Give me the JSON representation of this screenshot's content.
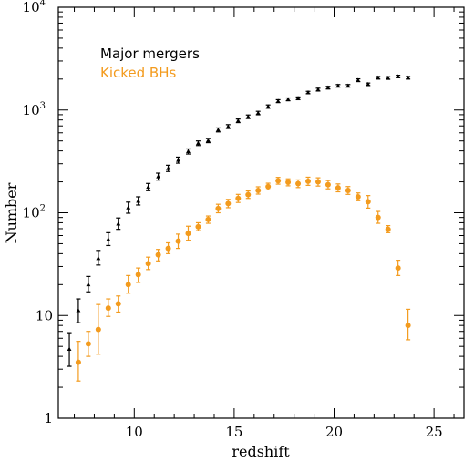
{
  "chart_data": {
    "type": "scatter",
    "xlabel": "redshift",
    "ylabel": "Number",
    "xlim": [
      6.2,
      26.5
    ],
    "ylim": [
      1,
      10000
    ],
    "yscale": "log",
    "xticks_major": [
      10,
      15,
      20,
      25
    ],
    "xtick_labels": [
      "10",
      "15",
      "20",
      "25"
    ],
    "ytick_labels": [
      {
        "value": 1,
        "label": "1"
      },
      {
        "value": 10,
        "label": "10"
      },
      {
        "value": 100,
        "label": "10",
        "exp": "2"
      },
      {
        "value": 1000,
        "label": "10",
        "exp": "3"
      },
      {
        "value": 10000,
        "label": "10",
        "exp": "4"
      }
    ],
    "legend_position": "top-left",
    "series": [
      {
        "name": "Major mergers",
        "color": "#000000",
        "marker": "triangle",
        "points": [
          {
            "x": 6.75,
            "y": 4.7,
            "lo": 3.2,
            "hi": 6.8
          },
          {
            "x": 7.2,
            "y": 11.2,
            "lo": 8.5,
            "hi": 14.5
          },
          {
            "x": 7.7,
            "y": 20,
            "lo": 17,
            "hi": 24
          },
          {
            "x": 8.2,
            "y": 36,
            "lo": 31,
            "hi": 43
          },
          {
            "x": 8.7,
            "y": 55,
            "lo": 48,
            "hi": 64
          },
          {
            "x": 9.2,
            "y": 78,
            "lo": 69,
            "hi": 89
          },
          {
            "x": 9.7,
            "y": 112,
            "lo": 99,
            "hi": 127
          },
          {
            "x": 10.2,
            "y": 130,
            "lo": 119,
            "hi": 143
          },
          {
            "x": 10.7,
            "y": 178,
            "lo": 164,
            "hi": 193
          },
          {
            "x": 11.2,
            "y": 225,
            "lo": 208,
            "hi": 243
          },
          {
            "x": 11.7,
            "y": 270,
            "lo": 252,
            "hi": 290
          },
          {
            "x": 12.2,
            "y": 325,
            "lo": 304,
            "hi": 348
          },
          {
            "x": 12.7,
            "y": 395,
            "lo": 373,
            "hi": 418
          },
          {
            "x": 13.2,
            "y": 475,
            "lo": 451,
            "hi": 500
          },
          {
            "x": 13.7,
            "y": 505,
            "lo": 481,
            "hi": 530
          },
          {
            "x": 14.2,
            "y": 640,
            "lo": 612,
            "hi": 669
          },
          {
            "x": 14.7,
            "y": 690,
            "lo": 661,
            "hi": 720
          },
          {
            "x": 15.2,
            "y": 785,
            "lo": 754,
            "hi": 817
          },
          {
            "x": 15.7,
            "y": 860,
            "lo": 826,
            "hi": 894
          },
          {
            "x": 16.2,
            "y": 935,
            "lo": 899,
            "hi": 971
          },
          {
            "x": 16.7,
            "y": 1080,
            "lo": 1040,
            "hi": 1120
          },
          {
            "x": 17.2,
            "y": 1220,
            "lo": 1180,
            "hi": 1260
          },
          {
            "x": 17.7,
            "y": 1270,
            "lo": 1230,
            "hi": 1310
          },
          {
            "x": 18.2,
            "y": 1300,
            "lo": 1260,
            "hi": 1340
          },
          {
            "x": 18.7,
            "y": 1480,
            "lo": 1440,
            "hi": 1520
          },
          {
            "x": 19.2,
            "y": 1580,
            "lo": 1530,
            "hi": 1630
          },
          {
            "x": 19.7,
            "y": 1650,
            "lo": 1600,
            "hi": 1700
          },
          {
            "x": 20.2,
            "y": 1720,
            "lo": 1670,
            "hi": 1770
          },
          {
            "x": 20.7,
            "y": 1720,
            "lo": 1670,
            "hi": 1770
          },
          {
            "x": 21.2,
            "y": 1950,
            "lo": 1890,
            "hi": 2010
          },
          {
            "x": 21.7,
            "y": 1780,
            "lo": 1730,
            "hi": 1830
          },
          {
            "x": 22.2,
            "y": 2060,
            "lo": 2000,
            "hi": 2120
          },
          {
            "x": 22.7,
            "y": 2050,
            "lo": 1990,
            "hi": 2110
          },
          {
            "x": 23.2,
            "y": 2120,
            "lo": 2060,
            "hi": 2180
          },
          {
            "x": 23.7,
            "y": 2060,
            "lo": 2000,
            "hi": 2120
          }
        ]
      },
      {
        "name": "Kicked BHs",
        "color": "#f39b1e",
        "marker": "circle",
        "points": [
          {
            "x": 7.2,
            "y": 3.5,
            "lo": 2.3,
            "hi": 5.6
          },
          {
            "x": 7.7,
            "y": 5.3,
            "lo": 4.0,
            "hi": 7.0
          },
          {
            "x": 8.2,
            "y": 7.3,
            "lo": 4.2,
            "hi": 12.8
          },
          {
            "x": 8.7,
            "y": 11.8,
            "lo": 9.8,
            "hi": 14.5
          },
          {
            "x": 9.2,
            "y": 13,
            "lo": 10.8,
            "hi": 15.5
          },
          {
            "x": 9.7,
            "y": 20,
            "lo": 16.5,
            "hi": 24.5
          },
          {
            "x": 10.2,
            "y": 25,
            "lo": 21,
            "hi": 29
          },
          {
            "x": 10.7,
            "y": 32,
            "lo": 28,
            "hi": 37
          },
          {
            "x": 11.2,
            "y": 39,
            "lo": 34,
            "hi": 44
          },
          {
            "x": 11.7,
            "y": 45,
            "lo": 40,
            "hi": 51
          },
          {
            "x": 12.2,
            "y": 53,
            "lo": 45,
            "hi": 62
          },
          {
            "x": 12.7,
            "y": 63,
            "lo": 54,
            "hi": 74
          },
          {
            "x": 13.2,
            "y": 73,
            "lo": 67,
            "hi": 80
          },
          {
            "x": 13.7,
            "y": 86,
            "lo": 79,
            "hi": 93
          },
          {
            "x": 14.2,
            "y": 110,
            "lo": 100,
            "hi": 121
          },
          {
            "x": 14.7,
            "y": 123,
            "lo": 112,
            "hi": 135
          },
          {
            "x": 15.2,
            "y": 138,
            "lo": 126,
            "hi": 151
          },
          {
            "x": 15.7,
            "y": 150,
            "lo": 138,
            "hi": 163
          },
          {
            "x": 16.2,
            "y": 165,
            "lo": 152,
            "hi": 179
          },
          {
            "x": 16.7,
            "y": 180,
            "lo": 167,
            "hi": 194
          },
          {
            "x": 17.2,
            "y": 205,
            "lo": 190,
            "hi": 221
          },
          {
            "x": 17.7,
            "y": 198,
            "lo": 183,
            "hi": 214
          },
          {
            "x": 18.2,
            "y": 192,
            "lo": 176,
            "hi": 209
          },
          {
            "x": 18.7,
            "y": 203,
            "lo": 185,
            "hi": 222
          },
          {
            "x": 19.2,
            "y": 200,
            "lo": 182,
            "hi": 219
          },
          {
            "x": 19.7,
            "y": 188,
            "lo": 171,
            "hi": 206
          },
          {
            "x": 20.2,
            "y": 175,
            "lo": 160,
            "hi": 191
          },
          {
            "x": 20.7,
            "y": 165,
            "lo": 151,
            "hi": 180
          },
          {
            "x": 21.2,
            "y": 143,
            "lo": 131,
            "hi": 156
          },
          {
            "x": 21.7,
            "y": 128,
            "lo": 111,
            "hi": 147
          },
          {
            "x": 22.2,
            "y": 90,
            "lo": 79,
            "hi": 103
          },
          {
            "x": 22.7,
            "y": 69,
            "lo": 64,
            "hi": 75
          },
          {
            "x": 23.2,
            "y": 29,
            "lo": 24.5,
            "hi": 34.5
          },
          {
            "x": 23.7,
            "y": 8.0,
            "lo": 5.8,
            "hi": 11.5
          }
        ]
      }
    ]
  }
}
